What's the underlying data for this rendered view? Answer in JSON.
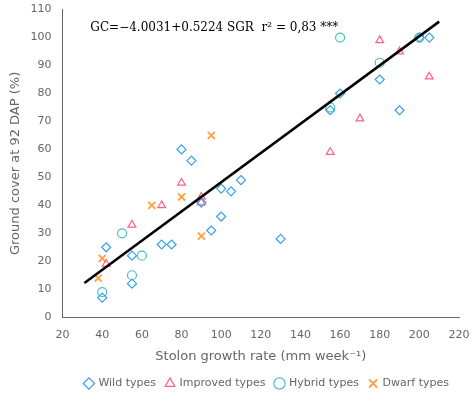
{
  "chart_data": {
    "type": "scatter",
    "xlabel": "Stolon growth rate (mm week⁻¹)",
    "ylabel": "Ground cover at 92 DAP (%)",
    "annotation": "GC=−4.0031+0.5224 SGR  r² = 0,83 ***",
    "xlim": [
      20,
      220
    ],
    "ylim": [
      0,
      110
    ],
    "xticks": [
      20,
      40,
      60,
      80,
      100,
      120,
      140,
      160,
      180,
      200,
      220
    ],
    "yticks": [
      0,
      10,
      20,
      30,
      40,
      50,
      60,
      70,
      80,
      90,
      100,
      110
    ],
    "grid": false,
    "legend": "lower right",
    "series": [
      {
        "name": "Wild types",
        "type": "scatter",
        "marker": "diamond",
        "x": [
          40,
          42,
          55,
          55,
          70,
          75,
          80,
          85,
          90,
          95,
          100,
          100,
          105,
          110,
          130,
          155,
          160,
          180,
          190,
          200,
          205
        ],
        "values": [
          7,
          25,
          12,
          22,
          26,
          26,
          60,
          56,
          41,
          31,
          36,
          46,
          45,
          49,
          28,
          74,
          80,
          85,
          74,
          100,
          100
        ]
      },
      {
        "name": "Improved types",
        "type": "scatter",
        "marker": "triangle",
        "x": [
          42,
          55,
          70,
          80,
          90,
          90,
          155,
          170,
          180,
          190,
          205
        ],
        "values": [
          19,
          33,
          40,
          48,
          43,
          41,
          59,
          71,
          99,
          95,
          86
        ]
      },
      {
        "name": "Hybrid types",
        "type": "scatter",
        "marker": "circle",
        "x": [
          40,
          50,
          55,
          60,
          155,
          160,
          180,
          200
        ],
        "values": [
          9,
          30,
          15,
          22,
          75,
          100,
          91,
          100
        ]
      },
      {
        "name": "Dwarf types",
        "type": "scatter",
        "marker": "x",
        "x": [
          38,
          40,
          65,
          80,
          90,
          95
        ],
        "values": [
          14,
          21,
          40,
          43,
          29,
          65
        ]
      },
      {
        "type": "line",
        "color": "black",
        "line_style": "solid",
        "x": [
          31,
          210
        ],
        "values": [
          12.1913,
          105.7009
        ]
      }
    ]
  }
}
